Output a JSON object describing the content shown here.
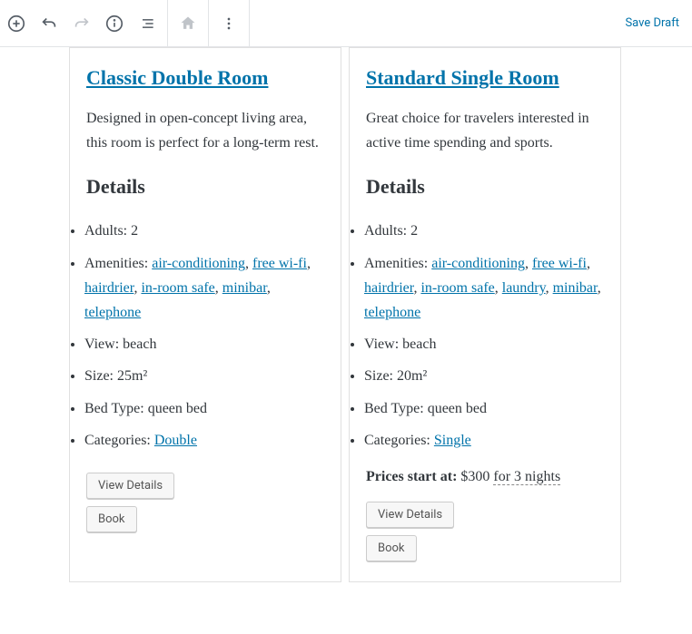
{
  "toolbar": {
    "save_draft": "Save Draft"
  },
  "labels": {
    "details_heading": "Details",
    "adults": "Adults:",
    "amenities": "Amenities:",
    "view": "View:",
    "size": "Size:",
    "bed_type": "Bed Type:",
    "categories": "Categories:",
    "view_details_btn": "View Details",
    "book_btn": "Book",
    "prices_start": "Prices start at:"
  },
  "rooms": [
    {
      "title": "Classic Double Room",
      "desc": "Designed in open-concept living area, this room is perfect for a long-term rest.",
      "adults": "2",
      "amenities": [
        "air-conditioning",
        "free wi-fi",
        "hairdrier",
        "in-room safe",
        "minibar",
        "telephone"
      ],
      "view": "beach",
      "size": "25m²",
      "bed_type": "queen bed",
      "category": "Double",
      "price": null
    },
    {
      "title": "Standard Single Room",
      "desc": "Great choice for travelers interested in active time spending and sports.",
      "adults": "2",
      "amenities": [
        "air-conditioning",
        "free wi-fi",
        "hairdrier",
        "in-room safe",
        "laundry",
        "minibar",
        "telephone"
      ],
      "view": "beach",
      "size": "20m²",
      "bed_type": "queen bed",
      "category": "Single",
      "price": {
        "amount": "$300",
        "nights": "for 3 nights"
      }
    }
  ]
}
